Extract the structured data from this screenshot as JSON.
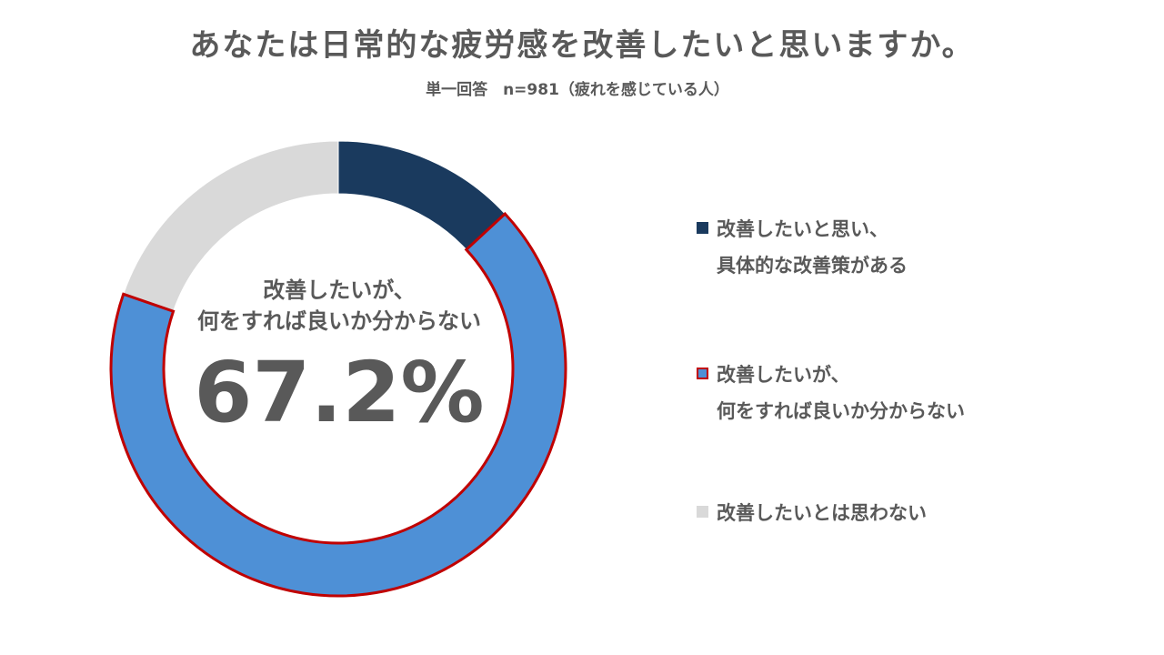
{
  "title": "あなたは日常的な疲労感を改善したいと思いますか。",
  "subtitle": "単一回答　n=981（疲れを感じている人）",
  "center": {
    "label_line1": "改善したいが、",
    "label_line2": "何をすれば良いか分からない",
    "value": "67.2%"
  },
  "legend": [
    {
      "line1": "改善したいと思い、",
      "line2": "具体的な改善策がある",
      "color": "#1a3a5e"
    },
    {
      "line1": "改善したいが、",
      "line2": "何をすれば良いか分からない",
      "color": "#4e90d6",
      "border": "#c00000"
    },
    {
      "line1": "改善したいとは思わない",
      "line2": "",
      "color": "#d9d9d9"
    }
  ],
  "chart_data": {
    "type": "pie",
    "style": "donut",
    "title": "あなたは日常的な疲労感を改善したいと思いますか。",
    "subtitle": "単一回答　n=981（疲れを感じている人）",
    "highlighted": "改善したいが、何をすれば良いか分からない",
    "slices": [
      {
        "label": "改善したいと思い、具体的な改善策がある",
        "value": 13.1,
        "color": "#1a3a5e"
      },
      {
        "label": "改善したいが、何をすれば良いか分からない",
        "value": 67.2,
        "color": "#4e90d6",
        "outline": "#c00000"
      },
      {
        "label": "改善したいとは思わない",
        "value": 19.7,
        "color": "#d9d9d9"
      }
    ],
    "legend_position": "right"
  }
}
